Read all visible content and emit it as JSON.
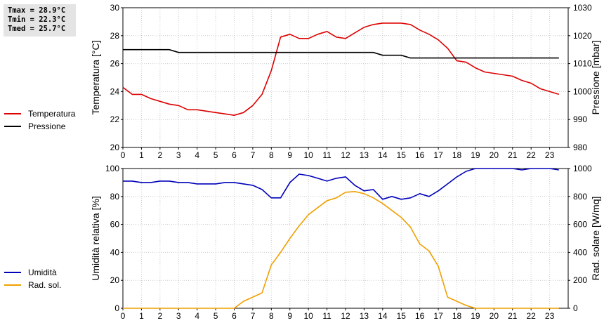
{
  "stats": [
    "Tmax = 28.9°C",
    "Tmin = 22.3°C",
    "Tmed = 25.7°C"
  ],
  "colors": {
    "temperatura": "#dd0000",
    "pressione": "#000000",
    "umidita": "#0000bb",
    "radiazione": "#f0a000",
    "grid": "#cccccc"
  },
  "chart_data": [
    {
      "type": "line",
      "xlabel": "",
      "xlim": [
        0,
        24
      ],
      "xticks": [
        0,
        1,
        2,
        3,
        4,
        5,
        6,
        7,
        8,
        9,
        10,
        11,
        12,
        13,
        14,
        15,
        16,
        17,
        18,
        19,
        20,
        21,
        22,
        23
      ],
      "ylabel": "Temperatura [°C]",
      "ylim": [
        20,
        30
      ],
      "yticks": [
        20,
        22,
        24,
        26,
        28,
        30
      ],
      "y2label": "Pressione [mbar]",
      "y2lim": [
        980,
        1030
      ],
      "y2ticks": [
        980,
        990,
        1000,
        1010,
        1020,
        1030
      ],
      "grid": true,
      "legend": "left",
      "series": [
        {
          "name": "Temperatura",
          "axis": "left",
          "x": [
            0,
            0.5,
            1,
            1.5,
            2,
            2.5,
            3,
            3.5,
            4,
            4.5,
            5,
            5.5,
            6,
            6.5,
            7,
            7.5,
            8,
            8.5,
            9,
            9.5,
            10,
            10.5,
            11,
            11.5,
            12,
            12.5,
            13,
            13.5,
            14,
            14.5,
            15,
            15.5,
            16,
            16.5,
            17,
            17.5,
            18,
            18.5,
            19,
            19.5,
            20,
            20.5,
            21,
            21.5,
            22,
            22.5,
            23,
            23.5
          ],
          "y": [
            24.3,
            23.8,
            23.8,
            23.5,
            23.3,
            23.1,
            23.0,
            22.7,
            22.7,
            22.6,
            22.5,
            22.4,
            22.3,
            22.5,
            23.0,
            23.8,
            25.5,
            27.9,
            28.1,
            27.8,
            27.8,
            28.1,
            28.3,
            27.9,
            27.8,
            28.2,
            28.6,
            28.8,
            28.9,
            28.9,
            28.9,
            28.8,
            28.4,
            28.1,
            27.7,
            27.1,
            26.2,
            26.1,
            25.7,
            25.4,
            25.3,
            25.2,
            25.1,
            24.8,
            24.6,
            24.2,
            24.0,
            23.8
          ]
        },
        {
          "name": "Pressione",
          "axis": "right",
          "x": [
            0,
            2.5,
            3,
            13.5,
            14,
            15,
            15.5,
            23.5
          ],
          "y": [
            1015,
            1015,
            1014,
            1014,
            1013,
            1013,
            1012,
            1012
          ]
        }
      ]
    },
    {
      "type": "line",
      "xlabel": "",
      "xlim": [
        0,
        24
      ],
      "xticks": [
        0,
        1,
        2,
        3,
        4,
        5,
        6,
        7,
        8,
        9,
        10,
        11,
        12,
        13,
        14,
        15,
        16,
        17,
        18,
        19,
        20,
        21,
        22,
        23
      ],
      "ylabel": "Umidità relativa [%]",
      "ylim": [
        0,
        100
      ],
      "yticks": [
        0,
        20,
        40,
        60,
        80,
        100
      ],
      "y2label": "Rad. solare [W/mq]",
      "y2lim": [
        0,
        1000
      ],
      "y2ticks": [
        0,
        200,
        400,
        600,
        800,
        1000
      ],
      "grid": true,
      "legend": "left",
      "series": [
        {
          "name": "Umidità",
          "axis": "left",
          "x": [
            0,
            0.5,
            1,
            1.5,
            2,
            2.5,
            3,
            3.5,
            4,
            4.5,
            5,
            5.5,
            6,
            6.5,
            7,
            7.5,
            8,
            8.5,
            9,
            9.5,
            10,
            10.5,
            11,
            11.5,
            12,
            12.5,
            13,
            13.5,
            14,
            14.5,
            15,
            15.5,
            16,
            16.5,
            17,
            17.5,
            18,
            18.5,
            19,
            19.5,
            20,
            20.5,
            21,
            21.5,
            22,
            22.5,
            23,
            23.5
          ],
          "y": [
            91,
            91,
            90,
            90,
            91,
            91,
            90,
            90,
            89,
            89,
            89,
            90,
            90,
            89,
            88,
            85,
            79,
            79,
            90,
            96,
            95,
            93,
            91,
            93,
            94,
            88,
            84,
            85,
            78,
            80,
            78,
            79,
            82,
            80,
            84,
            89,
            94,
            98,
            100,
            100,
            100,
            100,
            100,
            99,
            100,
            100,
            100,
            99
          ]
        },
        {
          "name": "Rad. sol.",
          "axis": "right",
          "x": [
            0,
            1,
            2,
            3,
            4,
            5,
            6,
            6.5,
            7,
            7.5,
            8,
            8.5,
            9,
            9.5,
            10,
            10.5,
            11,
            11.5,
            12,
            12.5,
            13,
            13.5,
            14,
            14.5,
            15,
            15.5,
            16,
            16.5,
            17,
            17.5,
            18,
            18.5,
            19,
            20,
            21,
            22,
            23,
            23.5
          ],
          "y": [
            0,
            0,
            0,
            0,
            0,
            0,
            0,
            50,
            80,
            110,
            310,
            400,
            500,
            590,
            670,
            720,
            770,
            790,
            830,
            835,
            820,
            790,
            750,
            700,
            650,
            580,
            460,
            410,
            300,
            80,
            50,
            20,
            0,
            0,
            0,
            0,
            0,
            0
          ]
        }
      ]
    }
  ]
}
